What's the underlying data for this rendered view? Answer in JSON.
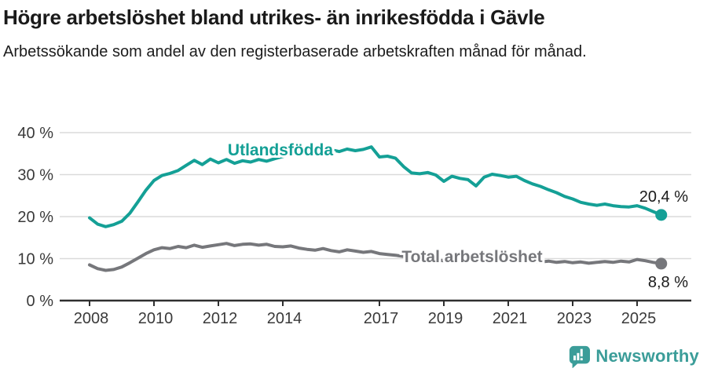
{
  "header": {
    "title": "Högre arbetslöshet bland utrikes- än inrikesfödda i Gävle",
    "subtitle": "Arbetssökande som andel av den registerbaserade arbetskraften månad för månad."
  },
  "footer": {
    "brand": "Newsworthy"
  },
  "colors": {
    "accent_teal": "#14a096",
    "secondary_gray": "#76777b",
    "grid": "#dadada",
    "axis": "#2f2f2f",
    "tick_text": "#3a3a3a",
    "value_text": "#1a1a1a",
    "brand_teal": "#3b9d99"
  },
  "chart_data": {
    "type": "line",
    "title": "Högre arbetslöshet bland utrikes- än inrikesfödda i Gävle",
    "subtitle": "Arbetssökande som andel av den registerbaserade arbetskraften månad för månad.",
    "x_unit": "year (monthly share of labour force)",
    "xlim": [
      2007.1,
      2026.7
    ],
    "ylim": [
      0,
      40
    ],
    "grid": "horizontal",
    "legend_position": "inline-labels",
    "y_ticks": [
      {
        "v": 0,
        "label": "0 %"
      },
      {
        "v": 10,
        "label": "10 %"
      },
      {
        "v": 20,
        "label": "20 %"
      },
      {
        "v": 30,
        "label": "30 %"
      },
      {
        "v": 40,
        "label": "40 %"
      }
    ],
    "x_ticks": [
      {
        "v": 2008,
        "label": "2008"
      },
      {
        "v": 2010,
        "label": "2010"
      },
      {
        "v": 2012,
        "label": "2012"
      },
      {
        "v": 2014,
        "label": "2014"
      },
      {
        "v": 2017,
        "label": "2017"
      },
      {
        "v": 2019,
        "label": "2019"
      },
      {
        "v": 2021,
        "label": "2021"
      },
      {
        "v": 2023,
        "label": "2023"
      },
      {
        "v": 2025,
        "label": "2025"
      }
    ],
    "series": [
      {
        "name": "Utlandsfödda",
        "color": "#14a096",
        "end_label": "20,4 %",
        "points": [
          [
            2008,
            19.7
          ],
          [
            2008.25,
            18.2
          ],
          [
            2008.5,
            17.6
          ],
          [
            2008.75,
            18.1
          ],
          [
            2009,
            18.9
          ],
          [
            2009.25,
            20.8
          ],
          [
            2009.5,
            23.5
          ],
          [
            2009.75,
            26.3
          ],
          [
            2010,
            28.6
          ],
          [
            2010.25,
            29.8
          ],
          [
            2010.5,
            30.3
          ],
          [
            2010.75,
            31
          ],
          [
            2011,
            32.2
          ],
          [
            2011.25,
            33.4
          ],
          [
            2011.5,
            32.4
          ],
          [
            2011.75,
            33.7
          ],
          [
            2012,
            32.8
          ],
          [
            2012.25,
            33.6
          ],
          [
            2012.5,
            32.7
          ],
          [
            2012.75,
            33.3
          ],
          [
            2013,
            33
          ],
          [
            2013.25,
            33.6
          ],
          [
            2013.5,
            33.2
          ],
          [
            2013.75,
            33.8
          ],
          [
            2014,
            34.3
          ],
          [
            2014.25,
            34.9
          ],
          [
            2014.5,
            35.3
          ],
          [
            2014.75,
            34.8
          ],
          [
            2015,
            35.6
          ],
          [
            2015.25,
            35.2
          ],
          [
            2015.5,
            35.9
          ],
          [
            2015.75,
            35.5
          ],
          [
            2016,
            36.1
          ],
          [
            2016.25,
            35.7
          ],
          [
            2016.5,
            36
          ],
          [
            2016.75,
            36.6
          ],
          [
            2017,
            34.2
          ],
          [
            2017.25,
            34.4
          ],
          [
            2017.5,
            33.9
          ],
          [
            2017.75,
            31.9
          ],
          [
            2018,
            30.4
          ],
          [
            2018.25,
            30.2
          ],
          [
            2018.5,
            30.5
          ],
          [
            2018.75,
            29.9
          ],
          [
            2019,
            28.4
          ],
          [
            2019.25,
            29.6
          ],
          [
            2019.5,
            29.1
          ],
          [
            2019.75,
            28.8
          ],
          [
            2020,
            27.3
          ],
          [
            2020.25,
            29.4
          ],
          [
            2020.5,
            30.1
          ],
          [
            2020.75,
            29.8
          ],
          [
            2021,
            29.4
          ],
          [
            2021.25,
            29.6
          ],
          [
            2021.5,
            28.6
          ],
          [
            2021.75,
            27.8
          ],
          [
            2022,
            27.2
          ],
          [
            2022.25,
            26.4
          ],
          [
            2022.5,
            25.7
          ],
          [
            2022.75,
            24.8
          ],
          [
            2023,
            24.2
          ],
          [
            2023.25,
            23.4
          ],
          [
            2023.5,
            23
          ],
          [
            2023.75,
            22.7
          ],
          [
            2024,
            23
          ],
          [
            2024.25,
            22.6
          ],
          [
            2024.5,
            22.4
          ],
          [
            2024.75,
            22.3
          ],
          [
            2025,
            22.6
          ],
          [
            2025.25,
            22
          ],
          [
            2025.5,
            21.2
          ],
          [
            2025.75,
            20.4
          ]
        ]
      },
      {
        "name": "Total arbetslöshet",
        "color": "#76777b",
        "end_label": "8,8 %",
        "points": [
          [
            2008,
            8.5
          ],
          [
            2008.25,
            7.6
          ],
          [
            2008.5,
            7.2
          ],
          [
            2008.75,
            7.4
          ],
          [
            2009,
            8
          ],
          [
            2009.25,
            9
          ],
          [
            2009.5,
            10.1
          ],
          [
            2009.75,
            11.2
          ],
          [
            2010,
            12.1
          ],
          [
            2010.25,
            12.6
          ],
          [
            2010.5,
            12.4
          ],
          [
            2010.75,
            12.9
          ],
          [
            2011,
            12.6
          ],
          [
            2011.25,
            13.2
          ],
          [
            2011.5,
            12.7
          ],
          [
            2011.75,
            13
          ],
          [
            2012,
            13.3
          ],
          [
            2012.25,
            13.6
          ],
          [
            2012.5,
            13.1
          ],
          [
            2012.75,
            13.4
          ],
          [
            2013,
            13.5
          ],
          [
            2013.25,
            13.2
          ],
          [
            2013.5,
            13.4
          ],
          [
            2013.75,
            12.9
          ],
          [
            2014,
            12.8
          ],
          [
            2014.25,
            13
          ],
          [
            2014.5,
            12.5
          ],
          [
            2014.75,
            12.2
          ],
          [
            2015,
            12
          ],
          [
            2015.25,
            12.4
          ],
          [
            2015.5,
            11.9
          ],
          [
            2015.75,
            11.6
          ],
          [
            2016,
            12.1
          ],
          [
            2016.25,
            11.8
          ],
          [
            2016.5,
            11.5
          ],
          [
            2016.75,
            11.7
          ],
          [
            2017,
            11.2
          ],
          [
            2017.25,
            11
          ],
          [
            2017.5,
            10.8
          ],
          [
            2017.75,
            10.5
          ],
          [
            2018,
            10.2
          ],
          [
            2018.25,
            10
          ],
          [
            2018.5,
            9.9
          ],
          [
            2018.75,
            9.7
          ],
          [
            2019,
            9.5
          ],
          [
            2019.25,
            9.6
          ],
          [
            2019.5,
            9.4
          ],
          [
            2019.75,
            9.6
          ],
          [
            2020,
            9.8
          ],
          [
            2020.25,
            10.6
          ],
          [
            2020.5,
            10.9
          ],
          [
            2020.75,
            10.6
          ],
          [
            2021,
            10.3
          ],
          [
            2021.25,
            10
          ],
          [
            2021.5,
            9.7
          ],
          [
            2021.75,
            9.4
          ],
          [
            2022,
            9.2
          ],
          [
            2022.25,
            9.4
          ],
          [
            2022.5,
            9.1
          ],
          [
            2022.75,
            9.3
          ],
          [
            2023,
            9
          ],
          [
            2023.25,
            9.2
          ],
          [
            2023.5,
            8.9
          ],
          [
            2023.75,
            9.1
          ],
          [
            2024,
            9.3
          ],
          [
            2024.25,
            9.1
          ],
          [
            2024.5,
            9.4
          ],
          [
            2024.75,
            9.2
          ],
          [
            2025,
            9.8
          ],
          [
            2025.25,
            9.5
          ],
          [
            2025.5,
            9.1
          ],
          [
            2025.75,
            8.8
          ]
        ]
      }
    ]
  }
}
